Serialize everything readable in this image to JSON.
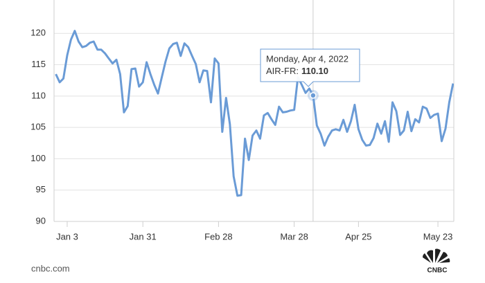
{
  "chart_data": {
    "type": "line",
    "categories": [
      null,
      null,
      null,
      "Jan 3",
      null,
      null,
      null,
      null,
      null,
      null,
      null,
      null,
      null,
      null,
      null,
      null,
      null,
      null,
      null,
      null,
      null,
      null,
      null,
      "Jan 31",
      null,
      null,
      null,
      null,
      null,
      null,
      null,
      null,
      null,
      null,
      null,
      null,
      null,
      null,
      null,
      null,
      null,
      null,
      null,
      "Feb 28",
      null,
      null,
      null,
      null,
      null,
      null,
      null,
      null,
      null,
      null,
      null,
      null,
      null,
      null,
      null,
      null,
      null,
      null,
      null,
      "Mar 28",
      null,
      null,
      null,
      null,
      null,
      null,
      null,
      null,
      null,
      null,
      null,
      null,
      null,
      null,
      null,
      null,
      "Apr 25",
      null,
      null,
      null,
      null,
      null,
      null,
      null,
      null,
      null,
      null,
      null,
      null,
      null,
      null,
      null,
      null,
      null,
      null,
      null,
      null,
      "May 23",
      null,
      null,
      null,
      null
    ],
    "series": [
      {
        "color": "#6a9bd6",
        "values": [
          113.5,
          112.2,
          112.8,
          116.5,
          119,
          120.4,
          118.7,
          117.8,
          118,
          118.5,
          118.7,
          117.4,
          117.4,
          116.8,
          116,
          115.2,
          115.8,
          113.5,
          107.4,
          108.4,
          114.3,
          114.4,
          111.5,
          112.2,
          115.4,
          113.5,
          111.8,
          110.4,
          113,
          115.5,
          117.6,
          118.3,
          118.5,
          116.4,
          118.4,
          117.8,
          116.4,
          115.1,
          112.2,
          114.1,
          114,
          109,
          116,
          115.2,
          104.3,
          109.7,
          105.5,
          97.2,
          94.1,
          94.2,
          103.2,
          99.8,
          103.7,
          104.5,
          103.2,
          106.9,
          107.3,
          106.3,
          105.4,
          108.3,
          107.4,
          107.5,
          107.7,
          107.8,
          113,
          111.8,
          110.5,
          111.2,
          110.1,
          105.3,
          104,
          102.1,
          103.5,
          104.5,
          104.7,
          104.5,
          106.2,
          104.3,
          106,
          108.6,
          104.7,
          103,
          102.1,
          102.2,
          103.3,
          105.6,
          104,
          106,
          102.7,
          109,
          107.6,
          103.8,
          104.5,
          107.5,
          104.4,
          106.3,
          105.8,
          108.3,
          108,
          106.5,
          107,
          107.2,
          102.8,
          104.8,
          109,
          112
        ]
      }
    ],
    "ylim": [
      90,
      124
    ],
    "yticks": [
      90,
      95,
      100,
      105,
      110,
      115,
      120
    ],
    "grid": true,
    "tooltip": {
      "date": "Monday, Apr 4, 2022",
      "series_label": "AIR-FR:",
      "value": 110.1,
      "value_label": "110.10"
    }
  },
  "footer": {
    "source": "cnbc.com",
    "logo": "CNBC"
  }
}
